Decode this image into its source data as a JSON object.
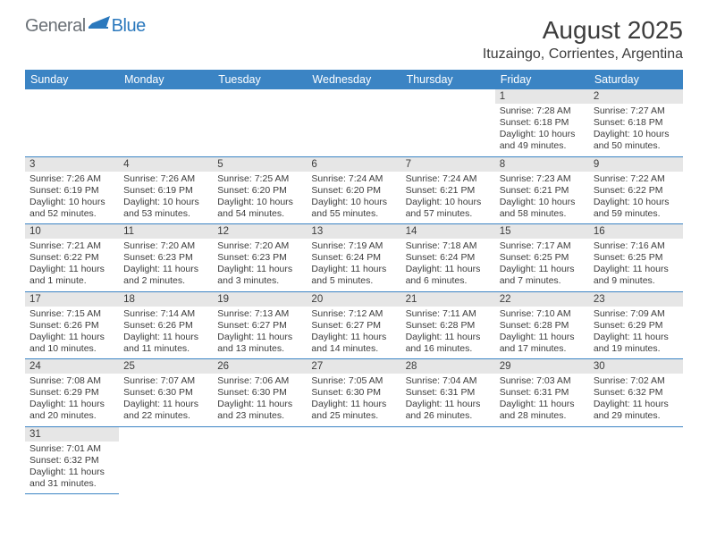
{
  "logo": {
    "text1": "General",
    "text2": "Blue"
  },
  "title": "August 2025",
  "location": "Ituzaingo, Corrientes, Argentina",
  "colors": {
    "header_bg": "#3b84c4",
    "header_text": "#ffffff",
    "daynum_bg": "#e6e6e6",
    "line": "#3b84c4",
    "body_text": "#3c3c3c",
    "logo_gray": "#6b7177",
    "logo_blue": "#2a78bd",
    "page_bg": "#ffffff"
  },
  "typography": {
    "title_fontsize": 28,
    "location_fontsize": 16,
    "dow_fontsize": 12.5,
    "daynum_fontsize": 11.5,
    "details_fontsize": 10.5
  },
  "dow": [
    "Sunday",
    "Monday",
    "Tuesday",
    "Wednesday",
    "Thursday",
    "Friday",
    "Saturday"
  ],
  "weeks": [
    [
      null,
      null,
      null,
      null,
      null,
      {
        "n": "1",
        "sr": "Sunrise: 7:28 AM",
        "ss": "Sunset: 6:18 PM",
        "dl": "Daylight: 10 hours and 49 minutes."
      },
      {
        "n": "2",
        "sr": "Sunrise: 7:27 AM",
        "ss": "Sunset: 6:18 PM",
        "dl": "Daylight: 10 hours and 50 minutes."
      }
    ],
    [
      {
        "n": "3",
        "sr": "Sunrise: 7:26 AM",
        "ss": "Sunset: 6:19 PM",
        "dl": "Daylight: 10 hours and 52 minutes."
      },
      {
        "n": "4",
        "sr": "Sunrise: 7:26 AM",
        "ss": "Sunset: 6:19 PM",
        "dl": "Daylight: 10 hours and 53 minutes."
      },
      {
        "n": "5",
        "sr": "Sunrise: 7:25 AM",
        "ss": "Sunset: 6:20 PM",
        "dl": "Daylight: 10 hours and 54 minutes."
      },
      {
        "n": "6",
        "sr": "Sunrise: 7:24 AM",
        "ss": "Sunset: 6:20 PM",
        "dl": "Daylight: 10 hours and 55 minutes."
      },
      {
        "n": "7",
        "sr": "Sunrise: 7:24 AM",
        "ss": "Sunset: 6:21 PM",
        "dl": "Daylight: 10 hours and 57 minutes."
      },
      {
        "n": "8",
        "sr": "Sunrise: 7:23 AM",
        "ss": "Sunset: 6:21 PM",
        "dl": "Daylight: 10 hours and 58 minutes."
      },
      {
        "n": "9",
        "sr": "Sunrise: 7:22 AM",
        "ss": "Sunset: 6:22 PM",
        "dl": "Daylight: 10 hours and 59 minutes."
      }
    ],
    [
      {
        "n": "10",
        "sr": "Sunrise: 7:21 AM",
        "ss": "Sunset: 6:22 PM",
        "dl": "Daylight: 11 hours and 1 minute."
      },
      {
        "n": "11",
        "sr": "Sunrise: 7:20 AM",
        "ss": "Sunset: 6:23 PM",
        "dl": "Daylight: 11 hours and 2 minutes."
      },
      {
        "n": "12",
        "sr": "Sunrise: 7:20 AM",
        "ss": "Sunset: 6:23 PM",
        "dl": "Daylight: 11 hours and 3 minutes."
      },
      {
        "n": "13",
        "sr": "Sunrise: 7:19 AM",
        "ss": "Sunset: 6:24 PM",
        "dl": "Daylight: 11 hours and 5 minutes."
      },
      {
        "n": "14",
        "sr": "Sunrise: 7:18 AM",
        "ss": "Sunset: 6:24 PM",
        "dl": "Daylight: 11 hours and 6 minutes."
      },
      {
        "n": "15",
        "sr": "Sunrise: 7:17 AM",
        "ss": "Sunset: 6:25 PM",
        "dl": "Daylight: 11 hours and 7 minutes."
      },
      {
        "n": "16",
        "sr": "Sunrise: 7:16 AM",
        "ss": "Sunset: 6:25 PM",
        "dl": "Daylight: 11 hours and 9 minutes."
      }
    ],
    [
      {
        "n": "17",
        "sr": "Sunrise: 7:15 AM",
        "ss": "Sunset: 6:26 PM",
        "dl": "Daylight: 11 hours and 10 minutes."
      },
      {
        "n": "18",
        "sr": "Sunrise: 7:14 AM",
        "ss": "Sunset: 6:26 PM",
        "dl": "Daylight: 11 hours and 11 minutes."
      },
      {
        "n": "19",
        "sr": "Sunrise: 7:13 AM",
        "ss": "Sunset: 6:27 PM",
        "dl": "Daylight: 11 hours and 13 minutes."
      },
      {
        "n": "20",
        "sr": "Sunrise: 7:12 AM",
        "ss": "Sunset: 6:27 PM",
        "dl": "Daylight: 11 hours and 14 minutes."
      },
      {
        "n": "21",
        "sr": "Sunrise: 7:11 AM",
        "ss": "Sunset: 6:28 PM",
        "dl": "Daylight: 11 hours and 16 minutes."
      },
      {
        "n": "22",
        "sr": "Sunrise: 7:10 AM",
        "ss": "Sunset: 6:28 PM",
        "dl": "Daylight: 11 hours and 17 minutes."
      },
      {
        "n": "23",
        "sr": "Sunrise: 7:09 AM",
        "ss": "Sunset: 6:29 PM",
        "dl": "Daylight: 11 hours and 19 minutes."
      }
    ],
    [
      {
        "n": "24",
        "sr": "Sunrise: 7:08 AM",
        "ss": "Sunset: 6:29 PM",
        "dl": "Daylight: 11 hours and 20 minutes."
      },
      {
        "n": "25",
        "sr": "Sunrise: 7:07 AM",
        "ss": "Sunset: 6:30 PM",
        "dl": "Daylight: 11 hours and 22 minutes."
      },
      {
        "n": "26",
        "sr": "Sunrise: 7:06 AM",
        "ss": "Sunset: 6:30 PM",
        "dl": "Daylight: 11 hours and 23 minutes."
      },
      {
        "n": "27",
        "sr": "Sunrise: 7:05 AM",
        "ss": "Sunset: 6:30 PM",
        "dl": "Daylight: 11 hours and 25 minutes."
      },
      {
        "n": "28",
        "sr": "Sunrise: 7:04 AM",
        "ss": "Sunset: 6:31 PM",
        "dl": "Daylight: 11 hours and 26 minutes."
      },
      {
        "n": "29",
        "sr": "Sunrise: 7:03 AM",
        "ss": "Sunset: 6:31 PM",
        "dl": "Daylight: 11 hours and 28 minutes."
      },
      {
        "n": "30",
        "sr": "Sunrise: 7:02 AM",
        "ss": "Sunset: 6:32 PM",
        "dl": "Daylight: 11 hours and 29 minutes."
      }
    ],
    [
      {
        "n": "31",
        "sr": "Sunrise: 7:01 AM",
        "ss": "Sunset: 6:32 PM",
        "dl": "Daylight: 11 hours and 31 minutes."
      },
      null,
      null,
      null,
      null,
      null,
      null
    ]
  ]
}
